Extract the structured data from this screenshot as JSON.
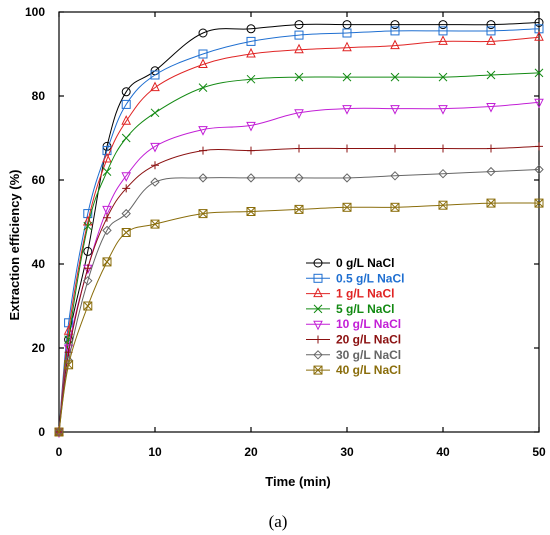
{
  "chart_data": {
    "type": "line",
    "xlabel": "Time (min)",
    "ylabel": "Extraction efficiency (%)",
    "xlim": [
      0,
      50
    ],
    "ylim": [
      0,
      100
    ],
    "xticks": [
      0,
      10,
      20,
      30,
      40,
      50
    ],
    "yticks": [
      0,
      20,
      40,
      60,
      80,
      100
    ],
    "grid": false,
    "legend_position": "center-right",
    "caption": "(a)",
    "series": [
      {
        "name": "0 g/L NaCl",
        "color": "#000000",
        "marker": "circle",
        "x": [
          0,
          1,
          3,
          5,
          7,
          10,
          15,
          20,
          25,
          30,
          35,
          40,
          45,
          50
        ],
        "y": [
          0,
          22,
          43,
          68,
          81,
          86,
          95,
          96,
          97,
          97,
          97,
          97,
          97,
          97.5
        ]
      },
      {
        "name": "0.5 g/L NaCl",
        "color": "#1f6fd1",
        "marker": "square",
        "x": [
          0,
          1,
          3,
          5,
          7,
          10,
          15,
          20,
          25,
          30,
          35,
          40,
          45,
          50
        ],
        "y": [
          0,
          26,
          52,
          67,
          78,
          85,
          90,
          93,
          94.5,
          95,
          95.5,
          95.5,
          95.5,
          96
        ]
      },
      {
        "name": "1 g/L NaCl",
        "color": "#e02424",
        "marker": "triangle",
        "x": [
          0,
          1,
          3,
          5,
          7,
          10,
          15,
          20,
          25,
          30,
          35,
          40,
          45,
          50
        ],
        "y": [
          0,
          24,
          50,
          65,
          74,
          82,
          87.5,
          90,
          91,
          91.5,
          92,
          93,
          93,
          94
        ]
      },
      {
        "name": "5 g/L NaCl",
        "color": "#138a13",
        "marker": "x",
        "x": [
          0,
          1,
          3,
          5,
          7,
          10,
          15,
          20,
          25,
          30,
          35,
          40,
          45,
          50
        ],
        "y": [
          0,
          22,
          49,
          62,
          70,
          76,
          82,
          84,
          84.5,
          84.5,
          84.5,
          84.5,
          85,
          85.5
        ]
      },
      {
        "name": "10 g/L NaCl",
        "color": "#c21fd6",
        "marker": "triangle-down",
        "x": [
          0,
          1,
          3,
          5,
          7,
          10,
          15,
          20,
          25,
          30,
          35,
          40,
          45,
          50
        ],
        "y": [
          0,
          20,
          39,
          53,
          61,
          68,
          72,
          73,
          76,
          77,
          77,
          77,
          77.5,
          78.5
        ]
      },
      {
        "name": "20 g/L NaCl",
        "color": "#8b1111",
        "marker": "plus",
        "x": [
          0,
          1,
          3,
          5,
          7,
          10,
          15,
          20,
          25,
          30,
          35,
          40,
          45,
          50
        ],
        "y": [
          0,
          19,
          39,
          51,
          58,
          63.5,
          67,
          67,
          67.5,
          67.5,
          67.5,
          67.5,
          67.5,
          68
        ]
      },
      {
        "name": "30 g/L NaCl",
        "color": "#666666",
        "marker": "diamond",
        "x": [
          0,
          1,
          3,
          5,
          7,
          10,
          15,
          20,
          25,
          30,
          35,
          40,
          45,
          50
        ],
        "y": [
          0,
          17,
          36,
          48,
          52,
          59.5,
          60.5,
          60.5,
          60.5,
          60.5,
          61,
          61.5,
          62,
          62.5
        ]
      },
      {
        "name": "40 g/L NaCl",
        "color": "#8a6d0b",
        "marker": "square-x",
        "x": [
          0,
          1,
          3,
          5,
          7,
          10,
          15,
          20,
          25,
          30,
          35,
          40,
          45,
          50
        ],
        "y": [
          0,
          16,
          30,
          40.5,
          47.5,
          49.5,
          52,
          52.5,
          53,
          53.5,
          53.5,
          54,
          54.5,
          54.5
        ]
      }
    ]
  }
}
